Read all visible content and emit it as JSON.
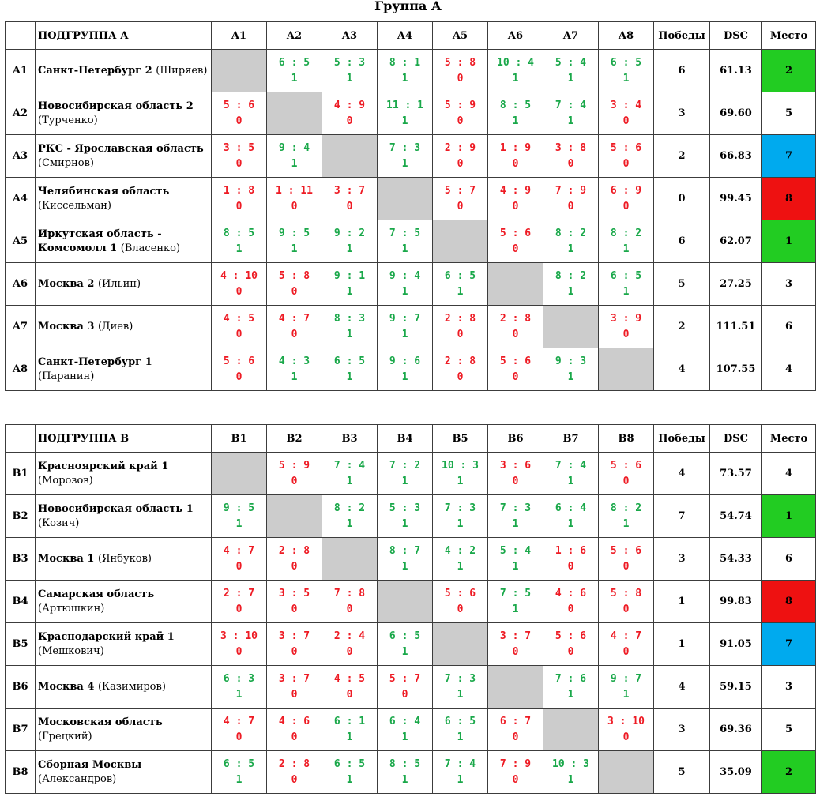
{
  "title": "Группа А",
  "colors": {
    "win": "#1aa84a",
    "loss": "#ee1b24",
    "self_cell": "#cccccc",
    "place_green": "#22cc22",
    "place_blue": "#00aaee",
    "place_red": "#ee1111"
  },
  "groups": [
    {
      "subgroup_label": "ПОДГРУППА А",
      "columns": [
        "A1",
        "A2",
        "A3",
        "A4",
        "A5",
        "A6",
        "A7",
        "A8"
      ],
      "wins_label": "Победы",
      "dsc_label": "DSC",
      "place_label": "Место",
      "rows": [
        {
          "id": "A1",
          "team": "Санкт-Петербург 2",
          "coach": "(Ширяев)",
          "cells": [
            null,
            {
              "s": "6 : 5",
              "p": "1"
            },
            {
              "s": "5 : 3",
              "p": "1"
            },
            {
              "s": "8 : 1",
              "p": "1"
            },
            {
              "s": "5 : 8",
              "p": "0"
            },
            {
              "s": "10 : 4",
              "p": "1"
            },
            {
              "s": "5 : 4",
              "p": "1"
            },
            {
              "s": "6 : 5",
              "p": "1"
            }
          ],
          "wins": "6",
          "dsc": "61.13",
          "place": "2",
          "place_color": "#22cc22"
        },
        {
          "id": "A2",
          "team": "Новосибирская область 2",
          "coach": "(Турченко)",
          "cells": [
            {
              "s": "5 : 6",
              "p": "0"
            },
            null,
            {
              "s": "4 : 9",
              "p": "0"
            },
            {
              "s": "11 : 1",
              "p": "1"
            },
            {
              "s": "5 : 9",
              "p": "0"
            },
            {
              "s": "8 : 5",
              "p": "1"
            },
            {
              "s": "7 : 4",
              "p": "1"
            },
            {
              "s": "3 : 4",
              "p": "0"
            }
          ],
          "wins": "3",
          "dsc": "69.60",
          "place": "5",
          "place_color": ""
        },
        {
          "id": "A3",
          "team": "РКС - Ярославская область",
          "coach": "(Смирнов)",
          "cells": [
            {
              "s": "3 : 5",
              "p": "0"
            },
            {
              "s": "9 : 4",
              "p": "1"
            },
            null,
            {
              "s": "7 : 3",
              "p": "1"
            },
            {
              "s": "2 : 9",
              "p": "0"
            },
            {
              "s": "1 : 9",
              "p": "0"
            },
            {
              "s": "3 : 8",
              "p": "0"
            },
            {
              "s": "5 : 6",
              "p": "0"
            }
          ],
          "wins": "2",
          "dsc": "66.83",
          "place": "7",
          "place_color": "#00aaee"
        },
        {
          "id": "A4",
          "team": "Челябинская область",
          "coach": "(Киссельман)",
          "cells": [
            {
              "s": "1 : 8",
              "p": "0"
            },
            {
              "s": "1 : 11",
              "p": "0"
            },
            {
              "s": "3 : 7",
              "p": "0"
            },
            null,
            {
              "s": "5 : 7",
              "p": "0"
            },
            {
              "s": "4 : 9",
              "p": "0"
            },
            {
              "s": "7 : 9",
              "p": "0"
            },
            {
              "s": "6 : 9",
              "p": "0"
            }
          ],
          "wins": "0",
          "dsc": "99.45",
          "place": "8",
          "place_color": "#ee1111"
        },
        {
          "id": "A5",
          "team": "Иркутская область - Комсомолл 1",
          "coach": "(Власенко)",
          "cells": [
            {
              "s": "8 : 5",
              "p": "1"
            },
            {
              "s": "9 : 5",
              "p": "1"
            },
            {
              "s": "9 : 2",
              "p": "1"
            },
            {
              "s": "7 : 5",
              "p": "1"
            },
            null,
            {
              "s": "5 : 6",
              "p": "0"
            },
            {
              "s": "8 : 2",
              "p": "1"
            },
            {
              "s": "8 : 2",
              "p": "1"
            }
          ],
          "wins": "6",
          "dsc": "62.07",
          "place": "1",
          "place_color": "#22cc22"
        },
        {
          "id": "A6",
          "team": "Москва 2",
          "coach": "(Ильин)",
          "cells": [
            {
              "s": "4 : 10",
              "p": "0"
            },
            {
              "s": "5 : 8",
              "p": "0"
            },
            {
              "s": "9 : 1",
              "p": "1"
            },
            {
              "s": "9 : 4",
              "p": "1"
            },
            {
              "s": "6 : 5",
              "p": "1"
            },
            null,
            {
              "s": "8 : 2",
              "p": "1"
            },
            {
              "s": "6 : 5",
              "p": "1"
            }
          ],
          "wins": "5",
          "dsc": "27.25",
          "place": "3",
          "place_color": ""
        },
        {
          "id": "A7",
          "team": "Москва 3",
          "coach": "(Диев)",
          "cells": [
            {
              "s": "4 : 5",
              "p": "0"
            },
            {
              "s": "4 : 7",
              "p": "0"
            },
            {
              "s": "8 : 3",
              "p": "1"
            },
            {
              "s": "9 : 7",
              "p": "1"
            },
            {
              "s": "2 : 8",
              "p": "0"
            },
            {
              "s": "2 : 8",
              "p": "0"
            },
            null,
            {
              "s": "3 : 9",
              "p": "0"
            }
          ],
          "wins": "2",
          "dsc": "111.51",
          "place": "6",
          "place_color": ""
        },
        {
          "id": "A8",
          "team": "Санкт-Петербург 1",
          "coach": "(Паранин)",
          "cells": [
            {
              "s": "5 : 6",
              "p": "0"
            },
            {
              "s": "4 : 3",
              "p": "1"
            },
            {
              "s": "6 : 5",
              "p": "1"
            },
            {
              "s": "9 : 6",
              "p": "1"
            },
            {
              "s": "2 : 8",
              "p": "0"
            },
            {
              "s": "5 : 6",
              "p": "0"
            },
            {
              "s": "9 : 3",
              "p": "1"
            },
            null
          ],
          "wins": "4",
          "dsc": "107.55",
          "place": "4",
          "place_color": ""
        }
      ]
    },
    {
      "subgroup_label": "ПОДГРУППА В",
      "columns": [
        "B1",
        "B2",
        "B3",
        "B4",
        "B5",
        "B6",
        "B7",
        "B8"
      ],
      "wins_label": "Победы",
      "dsc_label": "DSC",
      "place_label": "Место",
      "rows": [
        {
          "id": "B1",
          "team": "Красноярский край 1",
          "coach": "(Морозов)",
          "cells": [
            null,
            {
              "s": "5 : 9",
              "p": "0"
            },
            {
              "s": "7 : 4",
              "p": "1"
            },
            {
              "s": "7 : 2",
              "p": "1"
            },
            {
              "s": "10 : 3",
              "p": "1"
            },
            {
              "s": "3 : 6",
              "p": "0"
            },
            {
              "s": "7 : 4",
              "p": "1"
            },
            {
              "s": "5 : 6",
              "p": "0"
            }
          ],
          "wins": "4",
          "dsc": "73.57",
          "place": "4",
          "place_color": ""
        },
        {
          "id": "B2",
          "team": "Новосибирская область 1",
          "coach": "(Козич)",
          "cells": [
            {
              "s": "9 : 5",
              "p": "1"
            },
            null,
            {
              "s": "8 : 2",
              "p": "1"
            },
            {
              "s": "5 : 3",
              "p": "1"
            },
            {
              "s": "7 : 3",
              "p": "1"
            },
            {
              "s": "7 : 3",
              "p": "1"
            },
            {
              "s": "6 : 4",
              "p": "1"
            },
            {
              "s": "8 : 2",
              "p": "1"
            }
          ],
          "wins": "7",
          "dsc": "54.74",
          "place": "1",
          "place_color": "#22cc22"
        },
        {
          "id": "B3",
          "team": "Москва 1",
          "coach": "(Янбуков)",
          "cells": [
            {
              "s": "4 : 7",
              "p": "0"
            },
            {
              "s": "2 : 8",
              "p": "0"
            },
            null,
            {
              "s": "8 : 7",
              "p": "1"
            },
            {
              "s": "4 : 2",
              "p": "1"
            },
            {
              "s": "5 : 4",
              "p": "1"
            },
            {
              "s": "1 : 6",
              "p": "0"
            },
            {
              "s": "5 : 6",
              "p": "0"
            }
          ],
          "wins": "3",
          "dsc": "54.33",
          "place": "6",
          "place_color": ""
        },
        {
          "id": "B4",
          "team": "Самарская область",
          "coach": "(Артюшкин)",
          "cells": [
            {
              "s": "2 : 7",
              "p": "0"
            },
            {
              "s": "3 : 5",
              "p": "0"
            },
            {
              "s": "7 : 8",
              "p": "0"
            },
            null,
            {
              "s": "5 : 6",
              "p": "0"
            },
            {
              "s": "7 : 5",
              "p": "1"
            },
            {
              "s": "4 : 6",
              "p": "0"
            },
            {
              "s": "5 : 8",
              "p": "0"
            }
          ],
          "wins": "1",
          "dsc": "99.83",
          "place": "8",
          "place_color": "#ee1111"
        },
        {
          "id": "B5",
          "team": "Краснодарский край 1",
          "coach": "(Мешкович)",
          "cells": [
            {
              "s": "3 : 10",
              "p": "0"
            },
            {
              "s": "3 : 7",
              "p": "0"
            },
            {
              "s": "2 : 4",
              "p": "0"
            },
            {
              "s": "6 : 5",
              "p": "1"
            },
            null,
            {
              "s": "3 : 7",
              "p": "0"
            },
            {
              "s": "5 : 6",
              "p": "0"
            },
            {
              "s": "4 : 7",
              "p": "0"
            }
          ],
          "wins": "1",
          "dsc": "91.05",
          "place": "7",
          "place_color": "#00aaee"
        },
        {
          "id": "B6",
          "team": "Москва 4",
          "coach": "(Казимиров)",
          "cells": [
            {
              "s": "6 : 3",
              "p": "1"
            },
            {
              "s": "3 : 7",
              "p": "0"
            },
            {
              "s": "4 : 5",
              "p": "0"
            },
            {
              "s": "5 : 7",
              "p": "0"
            },
            {
              "s": "7 : 3",
              "p": "1"
            },
            null,
            {
              "s": "7 : 6",
              "p": "1"
            },
            {
              "s": "9 : 7",
              "p": "1"
            }
          ],
          "wins": "4",
          "dsc": "59.15",
          "place": "3",
          "place_color": ""
        },
        {
          "id": "B7",
          "team": "Московская область",
          "coach": "(Грецкий)",
          "cells": [
            {
              "s": "4 : 7",
              "p": "0"
            },
            {
              "s": "4 : 6",
              "p": "0"
            },
            {
              "s": "6 : 1",
              "p": "1"
            },
            {
              "s": "6 : 4",
              "p": "1"
            },
            {
              "s": "6 : 5",
              "p": "1"
            },
            {
              "s": "6 : 7",
              "p": "0"
            },
            null,
            {
              "s": "3 : 10",
              "p": "0"
            }
          ],
          "wins": "3",
          "dsc": "69.36",
          "place": "5",
          "place_color": ""
        },
        {
          "id": "B8",
          "team": "Сборная Москвы",
          "coach": "(Александров)",
          "cells": [
            {
              "s": "6 : 5",
              "p": "1"
            },
            {
              "s": "2 : 8",
              "p": "0"
            },
            {
              "s": "6 : 5",
              "p": "1"
            },
            {
              "s": "8 : 5",
              "p": "1"
            },
            {
              "s": "7 : 4",
              "p": "1"
            },
            {
              "s": "7 : 9",
              "p": "0"
            },
            {
              "s": "10 : 3",
              "p": "1"
            },
            null
          ],
          "wins": "5",
          "dsc": "35.09",
          "place": "2",
          "place_color": "#22cc22"
        }
      ]
    }
  ]
}
